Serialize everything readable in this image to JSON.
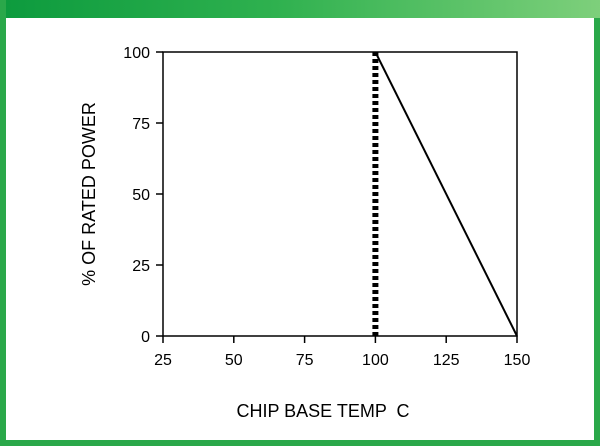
{
  "chart_data": {
    "type": "line",
    "xlabel": "CHIP BASE TEMP  C",
    "ylabel": "% OF RATED POWER",
    "xlim": [
      25,
      150
    ],
    "ylim": [
      0,
      100
    ],
    "x_ticks": [
      "25",
      "50",
      "75",
      "100",
      "125",
      "150"
    ],
    "y_ticks": [
      "0",
      "25",
      "50",
      "75",
      "100"
    ],
    "grid": false,
    "series": [
      {
        "line_style": "solid",
        "points": [
          [
            100,
            100
          ],
          [
            150,
            0
          ]
        ]
      },
      {
        "line_style": "dotted",
        "points": [
          [
            100,
            0
          ],
          [
            100,
            100
          ]
        ]
      }
    ]
  },
  "colors": {
    "frame_border": "#2aa84a",
    "line": "#000000"
  }
}
